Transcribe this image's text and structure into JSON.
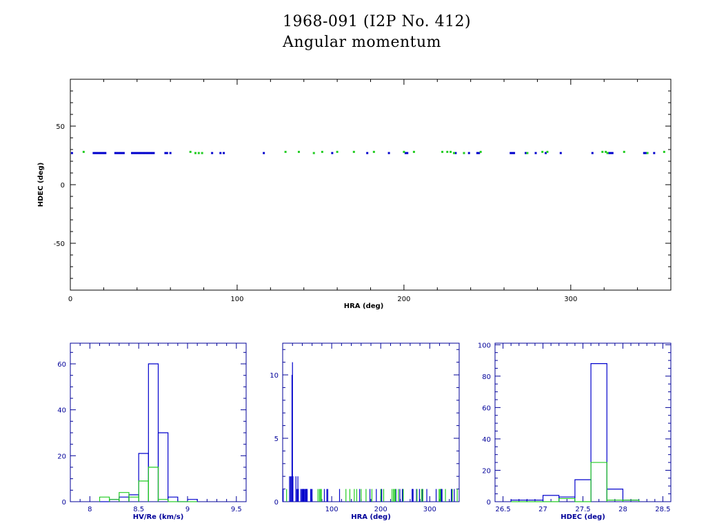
{
  "title": "1968-091 (I2P No. 412)",
  "subtitle": "Angular momentum",
  "colors": {
    "blue": "#0000cc",
    "green": "#22cc22",
    "axis_main": "#000000",
    "axis_hist": "#000099"
  },
  "chart_data": [
    {
      "type": "scatter",
      "xlabel": "HRA (deg)",
      "ylabel": "HDEC (deg)",
      "xlim": [
        0,
        360
      ],
      "ylim": [
        -90,
        90
      ],
      "x_ticks": [
        0,
        100,
        200,
        300
      ],
      "y_ticks": [
        50,
        0,
        -50
      ],
      "series": [
        {
          "color": "blue",
          "x": [
            1,
            14,
            15,
            16,
            17,
            18,
            19,
            20,
            21,
            27,
            28,
            29,
            30,
            31,
            32,
            37,
            38,
            39,
            40,
            41,
            42,
            43,
            44,
            45,
            46,
            47,
            48,
            49,
            50,
            57,
            58,
            60,
            85,
            90,
            92,
            116,
            157,
            178,
            191,
            201,
            202,
            231,
            239,
            244,
            245,
            264,
            265,
            266,
            273,
            279,
            285,
            294,
            313,
            323,
            324,
            325,
            344,
            345,
            350
          ],
          "y": [
            27,
            27,
            27,
            27,
            27,
            27,
            27,
            27,
            27,
            27,
            27,
            27,
            27,
            27,
            27,
            27,
            27,
            27,
            27,
            27,
            27,
            27,
            27,
            27,
            27,
            27,
            27,
            27,
            27,
            27,
            27,
            27,
            27,
            27,
            27,
            27,
            27,
            27,
            27,
            27,
            27,
            27,
            27,
            27,
            27,
            27,
            27,
            27,
            27,
            27,
            27,
            27,
            27,
            27,
            27,
            27,
            27,
            27,
            27
          ]
        },
        {
          "color": "green",
          "x": [
            8,
            72,
            75,
            77,
            79,
            129,
            137,
            146,
            151,
            160,
            170,
            182,
            200,
            206,
            223,
            226,
            228,
            230,
            236,
            246,
            274,
            283,
            286,
            319,
            321,
            322,
            332,
            346,
            356
          ],
          "y": [
            28,
            28,
            27,
            27,
            27,
            28,
            28,
            27,
            28,
            28,
            28,
            28,
            28,
            28,
            28,
            28,
            28,
            27,
            27,
            28,
            27,
            28,
            28,
            28,
            28,
            27,
            28,
            27,
            28
          ]
        }
      ]
    },
    {
      "type": "bar",
      "xlabel": "HV/Re (km/s)",
      "ylabel": "",
      "xlim": [
        7.8,
        9.6
      ],
      "ylim": [
        0,
        69
      ],
      "x_ticks": [
        "8",
        "8.5",
        "9",
        "9.5"
      ],
      "y_ticks": [
        0,
        20,
        40,
        60
      ],
      "bin_edges": [
        8.1,
        8.2,
        8.3,
        8.4,
        8.5,
        8.6,
        8.7,
        8.8,
        8.9,
        9.0,
        9.1
      ],
      "series": [
        {
          "color": "blue",
          "values": [
            0,
            1,
            2,
            3,
            21,
            60,
            30,
            2,
            0,
            1
          ]
        },
        {
          "color": "green",
          "values": [
            2,
            1,
            4,
            2,
            9,
            15,
            1,
            0,
            0,
            0
          ]
        }
      ]
    },
    {
      "type": "bar",
      "xlabel": "HRA (deg)",
      "ylabel": "",
      "xlim": [
        0,
        360
      ],
      "ylim": [
        0,
        12.5
      ],
      "x_ticks": [
        "100",
        "200",
        "300"
      ],
      "y_ticks": [
        0,
        5,
        10
      ],
      "spikes": [
        {
          "color": "blue",
          "x": [
            1,
            14,
            16,
            18,
            19,
            20,
            21,
            27,
            28,
            30,
            31,
            32,
            37,
            38,
            40,
            41,
            42,
            43,
            44,
            46,
            47,
            48,
            49,
            50,
            57,
            58,
            60,
            85,
            90,
            92,
            116,
            157,
            178,
            191,
            201,
            202,
            231,
            239,
            244,
            245,
            264,
            265,
            266,
            273,
            279,
            285,
            294,
            313,
            323,
            324,
            325,
            344,
            345,
            350
          ],
          "values": [
            1,
            2,
            2,
            2,
            10,
            11,
            2,
            2,
            1,
            1,
            2,
            1,
            1,
            1,
            1,
            1,
            1,
            1,
            1,
            1,
            1,
            1,
            1,
            1,
            1,
            1,
            1,
            1,
            1,
            1,
            1,
            1,
            1,
            1,
            1,
            1,
            1,
            1,
            1,
            1,
            1,
            1,
            1,
            1,
            1,
            1,
            1,
            1,
            1,
            1,
            1,
            1,
            1,
            1
          ]
        },
        {
          "color": "green",
          "x": [
            8,
            72,
            75,
            77,
            79,
            129,
            137,
            146,
            151,
            160,
            170,
            182,
            200,
            206,
            223,
            226,
            228,
            230,
            236,
            246,
            274,
            283,
            286,
            319,
            321,
            322,
            332,
            346,
            356
          ],
          "values": [
            1,
            1,
            1,
            1,
            1,
            1,
            1,
            1,
            1,
            1,
            1,
            1,
            1,
            1,
            1,
            1,
            1,
            1,
            1,
            1,
            1,
            1,
            1,
            1,
            1,
            1,
            1,
            1,
            1
          ]
        }
      ]
    },
    {
      "type": "bar",
      "xlabel": "HDEC (deg)",
      "ylabel": "",
      "xlim": [
        26.4,
        28.6
      ],
      "ylim": [
        0,
        101
      ],
      "x_ticks": [
        "26.5",
        "27",
        "27.5",
        "28",
        "28.5"
      ],
      "y_ticks": [
        0,
        20,
        40,
        60,
        80,
        100
      ],
      "bin_edges": [
        26.6,
        26.8,
        27.0,
        27.2,
        27.4,
        27.6,
        27.8,
        28.0,
        28.2
      ],
      "series": [
        {
          "color": "blue",
          "values": [
            1,
            1,
            4,
            3,
            14,
            88,
            8,
            1
          ]
        },
        {
          "color": "green",
          "values": [
            0,
            0,
            0,
            2,
            0,
            25,
            1,
            1
          ]
        }
      ]
    }
  ]
}
